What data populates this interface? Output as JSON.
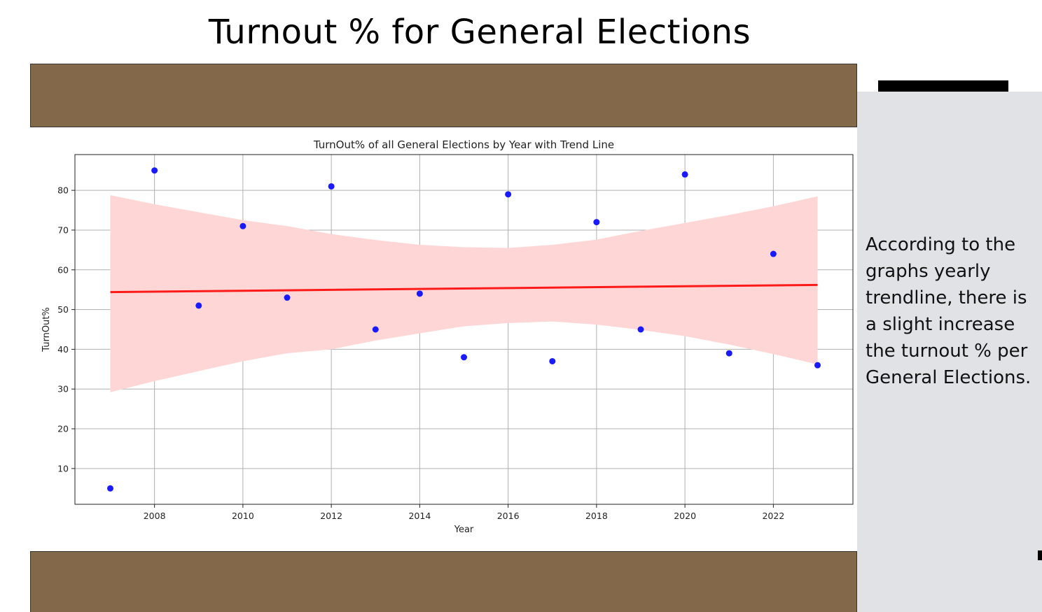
{
  "slide": {
    "title": "Turnout % for General Elections",
    "side_text": "According to the graphs yearly trendline, there is a slight increase the turnout % per General Elections."
  },
  "colors": {
    "band": "#83694a",
    "side_panel": "#e0e2e5",
    "points": "#1a1aff",
    "trend": "#ff1a1a",
    "ci_band": "#ffd6d6",
    "grid": "#b0b0b0"
  },
  "chart_data": {
    "type": "scatter",
    "title": "TurnOut% of all General Elections by Year with Trend Line",
    "xlabel": "Year",
    "ylabel": "TurnOut%",
    "xlim": [
      2006.2,
      2023.8
    ],
    "ylim": [
      1.0,
      89.0
    ],
    "xticks": [
      2008,
      2010,
      2012,
      2014,
      2016,
      2018,
      2020,
      2022
    ],
    "yticks": [
      10,
      20,
      30,
      40,
      50,
      60,
      70,
      80
    ],
    "grid": true,
    "points": {
      "x": [
        2007,
        2008,
        2009,
        2010,
        2011,
        2012,
        2013,
        2014,
        2015,
        2016,
        2017,
        2018,
        2019,
        2020,
        2021,
        2022,
        2023
      ],
      "y": [
        5,
        85,
        51,
        71,
        53,
        81,
        45,
        54,
        38,
        79,
        37,
        72,
        45,
        84,
        39,
        64,
        36
      ]
    },
    "trend_line": {
      "x": [
        2007,
        2023
      ],
      "y": [
        54.4,
        56.2
      ]
    },
    "confidence_band": {
      "x": [
        2007,
        2008,
        2009,
        2010,
        2011,
        2012,
        2013,
        2014,
        2015,
        2016,
        2017,
        2018,
        2019,
        2020,
        2021,
        2022,
        2023
      ],
      "upper": [
        78.8,
        76.5,
        74.5,
        72.5,
        71.0,
        69.0,
        67.5,
        66.3,
        65.7,
        65.5,
        66.3,
        67.6,
        69.8,
        71.8,
        73.8,
        76.0,
        78.5
      ],
      "lower": [
        29.2,
        32.0,
        34.5,
        37.0,
        39.0,
        40.0,
        42.2,
        44.0,
        45.8,
        46.6,
        47.0,
        46.2,
        44.9,
        43.3,
        41.2,
        38.8,
        36.2
      ]
    }
  }
}
